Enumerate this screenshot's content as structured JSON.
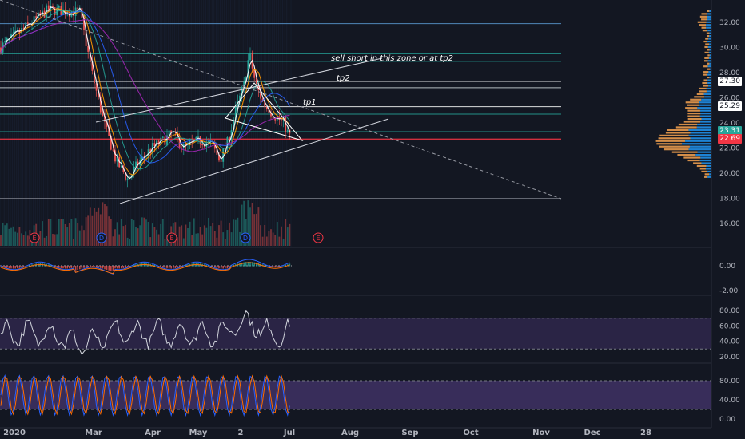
{
  "chart_data": {
    "type": "candlestick",
    "price_axis": {
      "ticks": [
        32.0,
        30.0,
        28.0,
        26.0,
        24.0,
        22.0,
        20.0,
        18.0,
        16.0
      ],
      "labels": [
        "32.00",
        "30.00",
        "28.00",
        "26.00",
        "24.00",
        "22.00",
        "20.00",
        "18.00",
        "16.00"
      ],
      "ylim": [
        14.5,
        33.2
      ]
    },
    "price_tags": [
      {
        "value": 27.3,
        "label": "27.30",
        "bg": "#ffffff",
        "fg": "#131722"
      },
      {
        "value": 25.29,
        "label": "25.29",
        "bg": "#ffffff",
        "fg": "#131722"
      },
      {
        "value": 23.31,
        "label": "23.31",
        "bg": "#26a69a",
        "fg": "#ffffff"
      },
      {
        "value": 22.69,
        "label": "22.69",
        "bg": "#f23645",
        "fg": "#ffffff"
      }
    ],
    "x_axis_labels": [
      "2020",
      "Mar",
      "Apr",
      "May",
      "2",
      "Jul",
      "Aug",
      "Sep",
      "Oct",
      "Nov",
      "Dec",
      "28"
    ],
    "annotations": [
      {
        "text": "sell short in this zone or at tp2"
      },
      {
        "text": "tp2"
      },
      {
        "text": "tp1"
      }
    ],
    "events": [
      {
        "label": "E",
        "color": "#f23645"
      },
      {
        "label": "D",
        "color": "#2962ff"
      },
      {
        "label": "E",
        "color": "#f23645"
      },
      {
        "label": "D",
        "color": "#2962ff"
      },
      {
        "label": "E",
        "color": "#f23645"
      }
    ],
    "horizontal_levels": [
      {
        "price": 31.9,
        "color": "#5b9bd5"
      },
      {
        "price": 29.5,
        "color": "#26a69a"
      },
      {
        "price": 28.9,
        "color": "#26a69a"
      },
      {
        "price": 27.3,
        "color": "#ffffff"
      },
      {
        "price": 26.8,
        "color": "#cfd8dc"
      },
      {
        "price": 25.29,
        "color": "#ffffff"
      },
      {
        "price": 24.7,
        "color": "#26a69a"
      },
      {
        "price": 23.3,
        "color": "#26a69a"
      },
      {
        "price": 22.69,
        "color": "#f23645"
      },
      {
        "price": 22.0,
        "color": "#f23645"
      },
      {
        "price": 18.0,
        "color": "#787b86"
      }
    ],
    "macd_panel": {
      "ticks": [
        "0.00",
        "-2.00"
      ]
    },
    "rsi_panel": {
      "ticks": [
        "80.00",
        "60.00",
        "40.00",
        "20.00"
      ],
      "band": [
        30,
        70
      ]
    },
    "stoch_panel": {
      "ticks": [
        "80.00",
        "40.00",
        "0.00"
      ],
      "band": [
        20,
        80
      ]
    },
    "colors": {
      "background": "#131722",
      "up": "#26a69a",
      "down": "#ef5350",
      "band": "#7e57c2"
    }
  }
}
